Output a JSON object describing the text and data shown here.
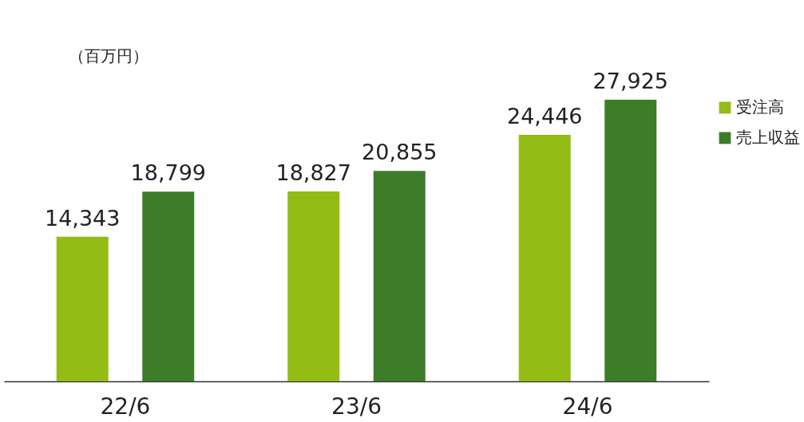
{
  "chart_data": {
    "type": "bar",
    "ylabel": "（百万円）",
    "categories": [
      "22/6",
      "23/6",
      "24/6"
    ],
    "series": [
      {
        "name": "受注高",
        "color": "#93bc15",
        "values": [
          14343,
          18827,
          24446
        ],
        "value_labels": [
          "14,343",
          "18,827",
          "24,446"
        ]
      },
      {
        "name": "売上収益",
        "color": "#3d7d2a",
        "values": [
          18799,
          20855,
          27925
        ],
        "value_labels": [
          "18,799",
          "20,855",
          "27,925"
        ]
      }
    ],
    "legend": "top right"
  }
}
